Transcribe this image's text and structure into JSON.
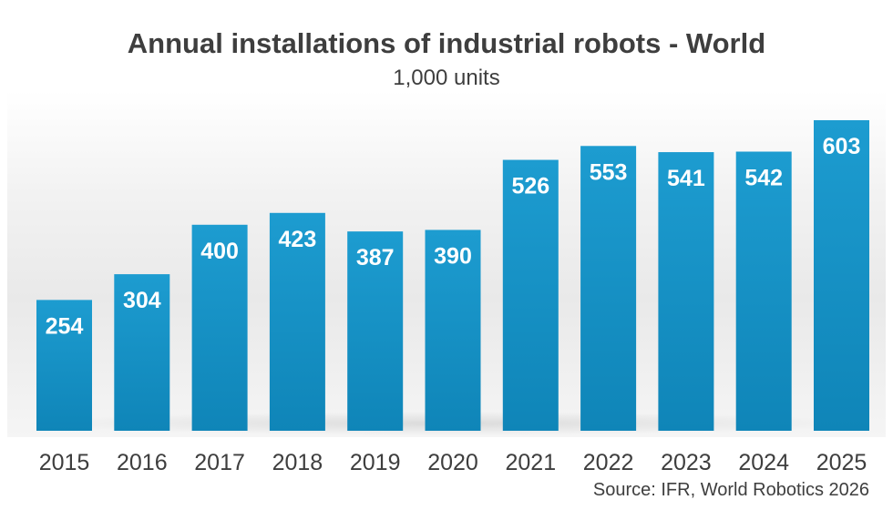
{
  "chart_data": {
    "type": "bar",
    "title": "Annual installations of industrial robots - World",
    "subtitle": "1,000 units",
    "categories": [
      "2015",
      "2016",
      "2017",
      "2018",
      "2019",
      "2020",
      "2021",
      "2022",
      "2023",
      "2024",
      "2025"
    ],
    "values": [
      254,
      304,
      400,
      423,
      387,
      390,
      526,
      553,
      541,
      542,
      603
    ],
    "data_labels": [
      "254",
      "304",
      "400",
      "423",
      "387",
      "390",
      "526",
      "553",
      "541",
      "542",
      "603"
    ],
    "xlabel": "",
    "ylabel": "",
    "ylim": [
      0,
      603
    ],
    "grid": false,
    "legend": "none",
    "bar_color": "#1d9cd0",
    "bar_color_dark": "#0f85b8",
    "label_color": "#ffffff",
    "source": "Source: IFR, World Robotics 2026"
  }
}
